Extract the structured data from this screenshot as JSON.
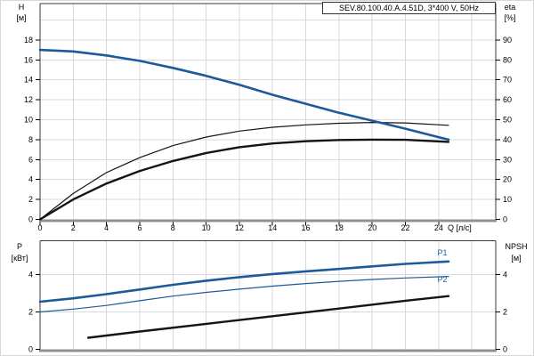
{
  "colors": {
    "accent_blue": "#1d5a99",
    "curve_black": "#141414",
    "grid": "#d9d9d9",
    "plot_border": "#3a3a3a",
    "axis_baseline": "#909090",
    "text": "#000000"
  },
  "chart_data": [
    {
      "type": "line",
      "title": "SEV.80.100.40.A.4.51D, 3*400 V, 50Hz",
      "xlabel": "Q [л/с]",
      "ylabel_left_name": "H",
      "ylabel_left_unit": "[м]",
      "ylabel_right_name": "eta",
      "ylabel_right_unit": "[%]",
      "xlim": [
        0,
        27.4
      ],
      "ylim_left": [
        0,
        21.7
      ],
      "ylim_right": [
        0,
        108.5
      ],
      "grid": true,
      "legend_position": "none",
      "x_ticks": [
        0,
        2,
        4,
        6,
        8,
        10,
        12,
        14,
        16,
        18,
        20,
        22,
        24
      ],
      "yticks_left": [
        0,
        2,
        4,
        6,
        8,
        10,
        12,
        14,
        16,
        18
      ],
      "yticks_right": [
        0,
        10,
        20,
        30,
        40,
        50,
        60,
        70,
        80,
        90
      ],
      "series": [
        {
          "name": "H",
          "axis": "left",
          "color": "#1d5a99",
          "width": 2.6,
          "points": [
            [
              0,
              17
            ],
            [
              2,
              16.85
            ],
            [
              4,
              16.45
            ],
            [
              6,
              15.9
            ],
            [
              8,
              15.2
            ],
            [
              10,
              14.4
            ],
            [
              12,
              13.5
            ],
            [
              14,
              12.5
            ],
            [
              16,
              11.6
            ],
            [
              18,
              10.7
            ],
            [
              20,
              9.9
            ],
            [
              22,
              9.1
            ],
            [
              24,
              8.25
            ],
            [
              24.6,
              8.0
            ]
          ]
        },
        {
          "name": "eta1",
          "axis": "right",
          "color": "#141414",
          "width": 1.2,
          "points": [
            [
              0,
              0
            ],
            [
              2,
              13
            ],
            [
              4,
              23.5
            ],
            [
              6,
              31
            ],
            [
              8,
              37
            ],
            [
              10,
              41.3
            ],
            [
              12,
              44.3
            ],
            [
              14,
              46.2
            ],
            [
              16,
              47.4
            ],
            [
              18,
              48.2
            ],
            [
              20,
              48.6
            ],
            [
              22,
              48.4
            ],
            [
              24.6,
              47.2
            ]
          ]
        },
        {
          "name": "eta2",
          "axis": "right",
          "color": "#141414",
          "width": 2.4,
          "points": [
            [
              0,
              0
            ],
            [
              2,
              10
            ],
            [
              4,
              18
            ],
            [
              6,
              24.3
            ],
            [
              8,
              29.3
            ],
            [
              10,
              33.3
            ],
            [
              12,
              36.2
            ],
            [
              14,
              38.1
            ],
            [
              16,
              39.2
            ],
            [
              18,
              39.8
            ],
            [
              20,
              40
            ],
            [
              22,
              39.9
            ],
            [
              24.6,
              38.9
            ]
          ]
        }
      ]
    },
    {
      "type": "line",
      "title": "",
      "xlabel": "",
      "ylabel_left_name": "P",
      "ylabel_left_unit": "[кВт]",
      "ylabel_right_name": "NPSH",
      "ylabel_right_unit": "[м]",
      "xlim": [
        0,
        27.4
      ],
      "ylim_left": [
        0,
        5.8
      ],
      "ylim_right": [
        0,
        5.8
      ],
      "grid": true,
      "legend_position": "inline-right",
      "x_ticks": [],
      "yticks_left": [
        0,
        2,
        4
      ],
      "yticks_right": [
        0,
        2,
        4
      ],
      "series": [
        {
          "name": "P1",
          "label": "P1",
          "axis": "left",
          "color": "#1d5a99",
          "width": 2.6,
          "points": [
            [
              0,
              2.55
            ],
            [
              2,
              2.73
            ],
            [
              4,
              2.95
            ],
            [
              6,
              3.2
            ],
            [
              8,
              3.45
            ],
            [
              10,
              3.67
            ],
            [
              12,
              3.86
            ],
            [
              14,
              4.03
            ],
            [
              16,
              4.17
            ],
            [
              18,
              4.3
            ],
            [
              20,
              4.44
            ],
            [
              22,
              4.57
            ],
            [
              24.6,
              4.7
            ]
          ]
        },
        {
          "name": "P2",
          "label": "P2",
          "axis": "left",
          "color": "#1d5a99",
          "width": 1.2,
          "points": [
            [
              0,
              2.0
            ],
            [
              2,
              2.15
            ],
            [
              4,
              2.35
            ],
            [
              6,
              2.6
            ],
            [
              8,
              2.85
            ],
            [
              10,
              3.05
            ],
            [
              12,
              3.22
            ],
            [
              14,
              3.38
            ],
            [
              16,
              3.52
            ],
            [
              18,
              3.64
            ],
            [
              20,
              3.74
            ],
            [
              22,
              3.82
            ],
            [
              24.6,
              3.9
            ]
          ]
        },
        {
          "name": "NPSH",
          "axis": "right",
          "color": "#141414",
          "width": 2.4,
          "points": [
            [
              2.9,
              0.62
            ],
            [
              6,
              0.95
            ],
            [
              10,
              1.36
            ],
            [
              14,
              1.77
            ],
            [
              18,
              2.18
            ],
            [
              22,
              2.6
            ],
            [
              24.6,
              2.85
            ]
          ]
        }
      ]
    }
  ]
}
